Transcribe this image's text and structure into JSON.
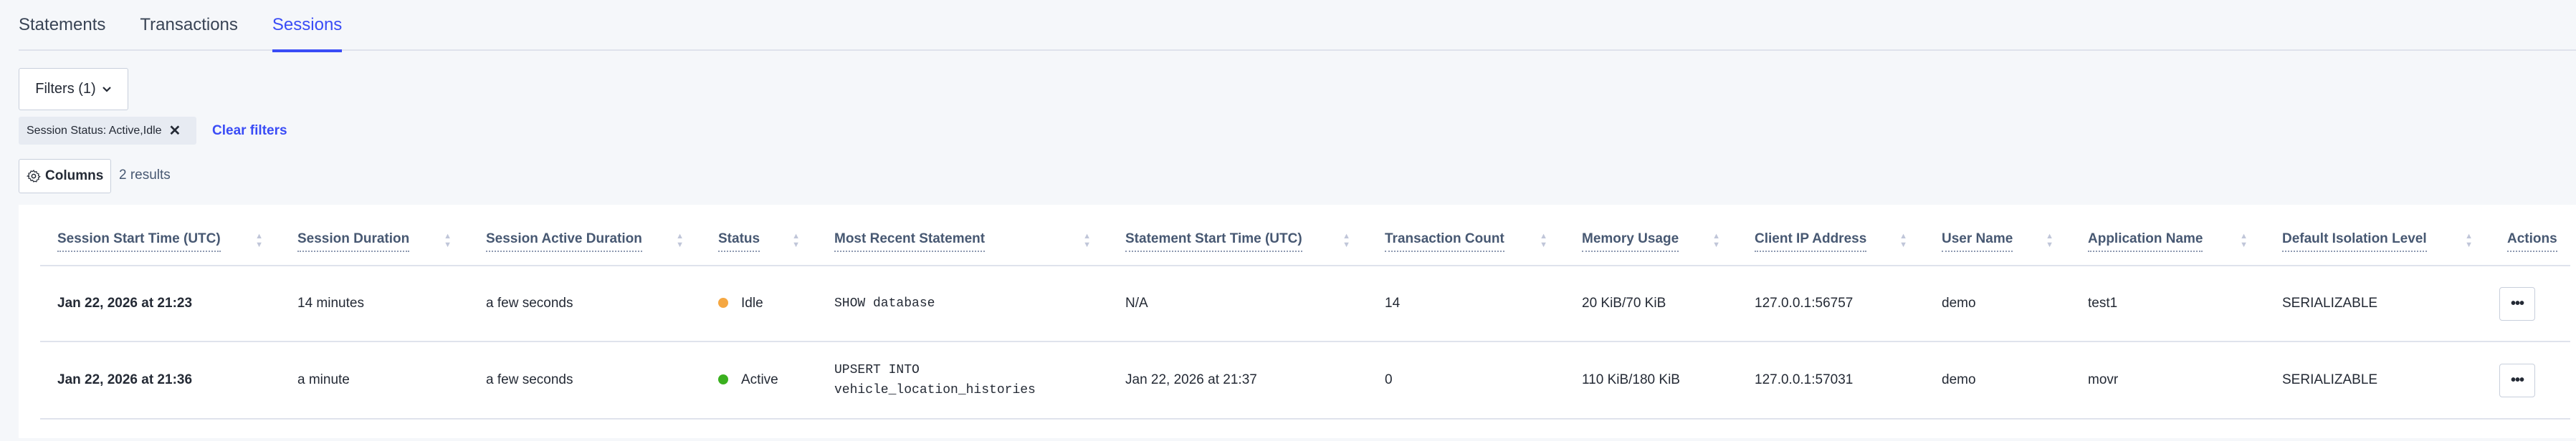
{
  "tabs": [
    {
      "label": "Statements"
    },
    {
      "label": "Transactions"
    },
    {
      "label": "Sessions",
      "active": true
    }
  ],
  "filters": {
    "button_label": "Filters (1)",
    "chip_label": "Session Status: Active,Idle",
    "chip_remove": "✕",
    "clear_label": "Clear filters"
  },
  "toolbar": {
    "columns_label": "Columns",
    "results": "2 results"
  },
  "colors": {
    "accent": "#3a4cf6",
    "idle": "#f5a742",
    "active": "#3ab01f"
  },
  "table": {
    "headers": [
      "Session Start Time (UTC)",
      "Session Duration",
      "Session Active Duration",
      "Status",
      "Most Recent Statement",
      "Statement Start Time (UTC)",
      "Transaction Count",
      "Memory Usage",
      "Client IP Address",
      "User Name",
      "Application Name",
      "Default Isolation Level",
      "Actions"
    ],
    "rows": [
      {
        "start": "Jan 22, 2026 at 21:23",
        "duration": "14 minutes",
        "active_duration": "a few seconds",
        "status": "Idle",
        "statement": "SHOW database",
        "statement_start": "N/A",
        "txn_count": "14",
        "memory": "20 KiB/70 KiB",
        "client_ip": "127.0.0.1:56757",
        "user": "demo",
        "app": "test1",
        "isolation": "SERIALIZABLE",
        "actions": "•••"
      },
      {
        "start": "Jan 22, 2026 at 21:36",
        "duration": "a minute",
        "active_duration": "a few seconds",
        "status": "Active",
        "statement": "UPSERT INTO vehicle_location_histories",
        "statement_start": "Jan 22, 2026 at 21:37",
        "txn_count": "0",
        "memory": "110 KiB/180 KiB",
        "client_ip": "127.0.0.1:57031",
        "user": "demo",
        "app": "movr",
        "isolation": "SERIALIZABLE",
        "actions": "•••"
      }
    ]
  }
}
